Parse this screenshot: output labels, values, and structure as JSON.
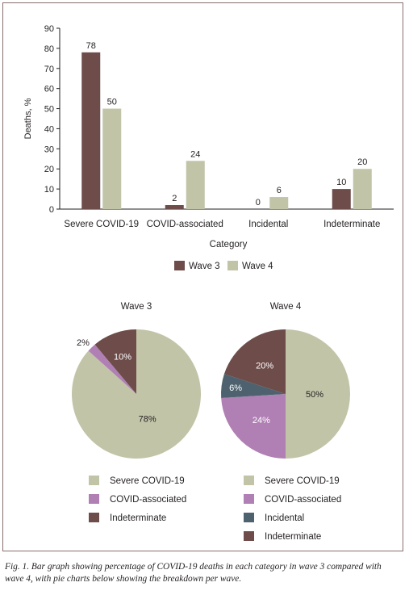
{
  "chart_data": [
    {
      "type": "bar",
      "title": "",
      "xlabel": "Category",
      "ylabel": "Deaths, %",
      "ylim": [
        0,
        90
      ],
      "yticks": [
        0,
        10,
        20,
        30,
        40,
        50,
        60,
        70,
        80,
        90
      ],
      "grid": false,
      "legend_position": "bottom",
      "categories": [
        "Severe COVID-19",
        "COVID-associated",
        "Incidental",
        "Indeterminate"
      ],
      "series": [
        {
          "name": "Wave 3",
          "color": "#6d4c4a",
          "values": [
            78,
            2,
            0,
            10
          ]
        },
        {
          "name": "Wave 4",
          "color": "#c2c4a8",
          "values": [
            50,
            24,
            6,
            20
          ]
        }
      ]
    },
    {
      "type": "pie",
      "title": "Wave 3",
      "slices": [
        {
          "label": "Severe COVID-19",
          "value": 78,
          "display": "78%",
          "color": "#c2c4a8",
          "text_color": "#231f20"
        },
        {
          "label": "COVID-associated",
          "value": 2,
          "display": "2%",
          "color": "#b07fb4",
          "text_color": "#231f20"
        },
        {
          "label": "Indeterminate",
          "value": 10,
          "display": "10%",
          "color": "#6d4c4a",
          "text_color": "#ffffff"
        }
      ],
      "legend_position": "bottom",
      "legend": [
        "Severe COVID-19",
        "COVID-associated",
        "Indeterminate"
      ]
    },
    {
      "type": "pie",
      "title": "Wave 4",
      "slices": [
        {
          "label": "Severe COVID-19",
          "value": 50,
          "display": "50%",
          "color": "#c2c4a8",
          "text_color": "#231f20"
        },
        {
          "label": "COVID-associated",
          "value": 24,
          "display": "24%",
          "color": "#b07fb4",
          "text_color": "#ffffff"
        },
        {
          "label": "Incidental",
          "value": 6,
          "display": "6%",
          "color": "#4d626e",
          "text_color": "#ffffff"
        },
        {
          "label": "Indeterminate",
          "value": 20,
          "display": "20%",
          "color": "#6d4c4a",
          "text_color": "#ffffff"
        }
      ],
      "legend_position": "bottom",
      "legend": [
        "Severe COVID-19",
        "COVID-associated",
        "Incidental",
        "Indeterminate"
      ]
    }
  ],
  "caption": "Fig. 1. Bar graph showing percentage of COVID-19 deaths in each category in wave 3 compared with wave 4, with pie charts below showing the breakdown per wave."
}
